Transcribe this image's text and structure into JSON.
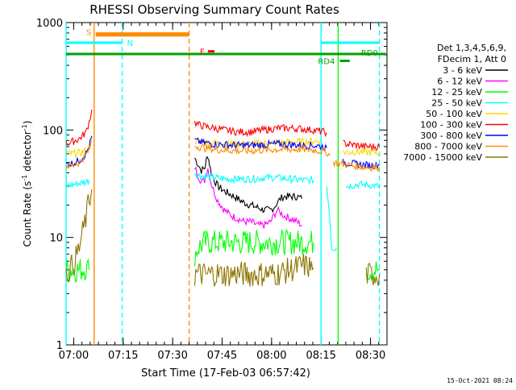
{
  "chart_data": {
    "type": "line",
    "title": "RHESSI Observing Summary Count Rates",
    "xlabel": "Start Time (17-Feb-03 06:57:42)",
    "ylabel_main": "Count Rate (s",
    "ylabel_sup1": "-1",
    "ylabel_mid": " detector",
    "ylabel_sup2": "-1",
    "ylabel_end": ")",
    "x_unit": "minutes after 06:57:42",
    "xlim": [
      0,
      97.3
    ],
    "ylim": [
      1,
      1000
    ],
    "yscale": "log",
    "xticks": [
      {
        "x": 2.3,
        "label": "07:00"
      },
      {
        "x": 17.3,
        "label": "07:15"
      },
      {
        "x": 32.3,
        "label": "07:30"
      },
      {
        "x": 47.3,
        "label": "07:45"
      },
      {
        "x": 62.3,
        "label": "08:00"
      },
      {
        "x": 77.3,
        "label": "08:15"
      },
      {
        "x": 92.3,
        "label": "08:30"
      }
    ],
    "yticks": [
      {
        "y": 1,
        "label": "1"
      },
      {
        "y": 10,
        "label": "10"
      },
      {
        "y": 100,
        "label": "100"
      },
      {
        "y": 1000,
        "label": "1000"
      }
    ],
    "legend": {
      "placement": "right",
      "header1": "Det 1,3,4,5,6,9,",
      "header2": "FDecim 1, Att 0"
    },
    "series": [
      {
        "name": "3 - 6 keV",
        "color": "#000000",
        "data": [
          [
            0,
            null
          ],
          [
            10,
            null
          ],
          [
            39,
            55
          ],
          [
            40,
            48
          ],
          [
            41,
            42
          ],
          [
            42,
            44
          ],
          [
            42.5,
            52
          ],
          [
            43,
            58
          ],
          [
            43.5,
            48
          ],
          [
            44,
            40
          ],
          [
            45,
            34
          ],
          [
            46,
            30
          ],
          [
            48,
            27
          ],
          [
            50,
            25
          ],
          [
            52,
            23
          ],
          [
            54,
            21
          ],
          [
            56,
            20
          ],
          [
            58,
            19
          ],
          [
            60,
            18
          ],
          [
            62,
            18
          ],
          [
            63,
            19
          ],
          [
            64,
            21
          ],
          [
            65,
            23
          ],
          [
            66,
            24
          ],
          [
            68,
            24
          ],
          [
            70,
            24
          ],
          [
            71.5,
            23
          ],
          [
            72,
            null
          ]
        ]
      },
      {
        "name": "6 - 12 keV",
        "color": "#ff00ff",
        "data": [
          [
            39,
            45
          ],
          [
            40,
            38
          ],
          [
            41,
            33
          ],
          [
            42,
            34
          ],
          [
            42.5,
            40
          ],
          [
            43,
            44
          ],
          [
            44,
            32
          ],
          [
            45,
            26
          ],
          [
            46,
            22
          ],
          [
            48,
            18
          ],
          [
            50,
            16
          ],
          [
            52,
            15
          ],
          [
            54,
            14
          ],
          [
            56,
            14
          ],
          [
            58,
            13
          ],
          [
            60,
            13
          ],
          [
            62,
            14
          ],
          [
            63,
            16
          ],
          [
            64,
            18
          ],
          [
            65,
            17
          ],
          [
            66,
            16
          ],
          [
            68,
            15
          ],
          [
            70,
            14
          ],
          [
            71.5,
            13
          ],
          [
            72,
            null
          ]
        ]
      },
      {
        "name": "12 - 25 keV",
        "color": "#00ff00",
        "data": [
          [
            0,
            5
          ],
          [
            2,
            5
          ],
          [
            4,
            5
          ],
          [
            6,
            5.2
          ],
          [
            7,
            5
          ],
          [
            8,
            null
          ],
          [
            39,
            7
          ],
          [
            40,
            8
          ],
          [
            42,
            9
          ],
          [
            45,
            9
          ],
          [
            48,
            9
          ],
          [
            52,
            9
          ],
          [
            56,
            9
          ],
          [
            60,
            9
          ],
          [
            64,
            9
          ],
          [
            68,
            9
          ],
          [
            72,
            9
          ],
          [
            75,
            9
          ],
          [
            75.5,
            null
          ],
          [
            91,
            5
          ],
          [
            92,
            5
          ],
          [
            94,
            5
          ],
          [
            95,
            5
          ]
        ]
      },
      {
        "name": "25 - 50 keV",
        "color": "#00ffff",
        "data": [
          [
            0,
            30
          ],
          [
            2,
            31
          ],
          [
            4,
            32
          ],
          [
            6,
            33
          ],
          [
            7,
            34
          ],
          [
            8,
            null
          ],
          [
            39,
            40
          ],
          [
            40,
            38
          ],
          [
            42,
            37
          ],
          [
            45,
            36
          ],
          [
            48,
            35
          ],
          [
            52,
            35
          ],
          [
            56,
            35
          ],
          [
            60,
            36
          ],
          [
            64,
            36
          ],
          [
            68,
            35
          ],
          [
            72,
            34
          ],
          [
            75,
            34
          ],
          [
            75.5,
            null
          ],
          [
            79,
            30
          ],
          [
            80,
            15
          ],
          [
            80.5,
            8
          ],
          [
            82,
            8
          ],
          [
            82.5,
            null
          ],
          [
            85,
            30
          ],
          [
            88,
            31
          ],
          [
            91,
            31
          ],
          [
            94,
            30
          ],
          [
            95,
            30
          ]
        ]
      },
      {
        "name": "50 - 100 keV",
        "color": "#ffd700",
        "data": [
          [
            0,
            61
          ],
          [
            2,
            60
          ],
          [
            4,
            61
          ],
          [
            6,
            64
          ],
          [
            7,
            67
          ],
          [
            8,
            null
          ],
          [
            39,
            80
          ],
          [
            40,
            78
          ],
          [
            42,
            77
          ],
          [
            45,
            76
          ],
          [
            48,
            75
          ],
          [
            52,
            74
          ],
          [
            56,
            74
          ],
          [
            60,
            75
          ],
          [
            64,
            76
          ],
          [
            68,
            77
          ],
          [
            72,
            78
          ],
          [
            75,
            79
          ],
          [
            77,
            79
          ],
          [
            78,
            null
          ],
          [
            84,
            62
          ],
          [
            88,
            63
          ],
          [
            91,
            62
          ],
          [
            94,
            62
          ],
          [
            95,
            62
          ]
        ]
      },
      {
        "name": "100 - 300 keV",
        "color": "#ff0000",
        "data": [
          [
            0,
            75
          ],
          [
            2,
            78
          ],
          [
            4,
            83
          ],
          [
            6,
            95
          ],
          [
            7,
            120
          ],
          [
            7.8,
            155
          ],
          [
            8,
            null
          ],
          [
            39,
            118
          ],
          [
            40,
            112
          ],
          [
            42,
            108
          ],
          [
            45,
            104
          ],
          [
            48,
            100
          ],
          [
            52,
            96
          ],
          [
            56,
            96
          ],
          [
            60,
            100
          ],
          [
            64,
            104
          ],
          [
            68,
            104
          ],
          [
            72,
            102
          ],
          [
            75,
            100
          ],
          [
            78,
            96
          ],
          [
            79,
            95
          ],
          [
            79.5,
            null
          ],
          [
            84,
            75
          ],
          [
            88,
            72
          ],
          [
            91,
            70
          ],
          [
            94,
            70
          ],
          [
            95,
            70
          ]
        ]
      },
      {
        "name": "300 - 800 keV",
        "color": "#0000ff",
        "data": [
          [
            0,
            48
          ],
          [
            2,
            49
          ],
          [
            4,
            52
          ],
          [
            6,
            60
          ],
          [
            7,
            70
          ],
          [
            7.8,
            88
          ],
          [
            8,
            null
          ],
          [
            39,
            80
          ],
          [
            40,
            78
          ],
          [
            42,
            76
          ],
          [
            45,
            74
          ],
          [
            48,
            73
          ],
          [
            52,
            72
          ],
          [
            56,
            72
          ],
          [
            60,
            73
          ],
          [
            64,
            74
          ],
          [
            68,
            73
          ],
          [
            72,
            72
          ],
          [
            75,
            72
          ],
          [
            78,
            70
          ],
          [
            79,
            68
          ],
          [
            79.5,
            null
          ],
          [
            84,
            50
          ],
          [
            88,
            48
          ],
          [
            91,
            47
          ],
          [
            94,
            47
          ],
          [
            95,
            47
          ]
        ]
      },
      {
        "name": "800 - 7000 keV",
        "color": "#ff8c00",
        "data": [
          [
            0,
            46
          ],
          [
            2,
            47
          ],
          [
            4,
            50
          ],
          [
            6,
            58
          ],
          [
            7,
            66
          ],
          [
            7.8,
            80
          ],
          [
            8,
            null
          ],
          [
            39,
            72
          ],
          [
            40,
            70
          ],
          [
            42,
            68
          ],
          [
            45,
            66
          ],
          [
            48,
            65
          ],
          [
            52,
            64
          ],
          [
            56,
            64
          ],
          [
            60,
            65
          ],
          [
            64,
            66
          ],
          [
            68,
            66
          ],
          [
            72,
            66
          ],
          [
            75,
            65
          ],
          [
            78,
            63
          ],
          [
            79,
            62
          ],
          [
            80,
            58
          ],
          [
            80.5,
            null
          ],
          [
            81,
            50
          ],
          [
            84,
            48
          ],
          [
            88,
            46
          ],
          [
            91,
            45
          ],
          [
            94,
            45
          ],
          [
            95,
            45
          ]
        ]
      },
      {
        "name": "7000 - 15000 keV",
        "color": "#8b7500",
        "data": [
          [
            0,
            4.5
          ],
          [
            1,
            5
          ],
          [
            2,
            5.5
          ],
          [
            3,
            6.5
          ],
          [
            4,
            8
          ],
          [
            5,
            11
          ],
          [
            6,
            15
          ],
          [
            7,
            22
          ],
          [
            7.8,
            28
          ],
          [
            8,
            null
          ],
          [
            39,
            4.5
          ],
          [
            40,
            4.6
          ],
          [
            42,
            4.5
          ],
          [
            45,
            4.6
          ],
          [
            48,
            4.5
          ],
          [
            52,
            4.6
          ],
          [
            56,
            4.5
          ],
          [
            60,
            4.6
          ],
          [
            64,
            4.6
          ],
          [
            68,
            5
          ],
          [
            72,
            5.5
          ],
          [
            75,
            5.2
          ],
          [
            75.5,
            null
          ],
          [
            91,
            4.5
          ],
          [
            92,
            4.5
          ],
          [
            94,
            4.5
          ],
          [
            95,
            4.5
          ]
        ]
      }
    ],
    "annotations": [
      {
        "label": "S",
        "color": "#ff8c00",
        "y": 760,
        "x1": 9,
        "x2": 37.3
      },
      {
        "label": "N",
        "color": "#00ffff",
        "y": 650,
        "x1": 0,
        "x2": 17
      },
      {
        "label": "F",
        "color": "#ff0000",
        "y": 540,
        "x1": 43,
        "x2": 45
      },
      {
        "label": "RD0",
        "color": "#00a000",
        "y": 510,
        "x1": 0,
        "x2": 97
      },
      {
        "label": "RD4",
        "color": "#00a000",
        "y": 440,
        "x1": 83,
        "x2": 86
      }
    ],
    "annotation_lines": {
      "y_top": 790,
      "cyan_right_x1": 77.3,
      "cyan_right_x2": 95
    },
    "vlines": [
      {
        "x": 0,
        "color": "#00ffff",
        "style": "solid"
      },
      {
        "x": 8.5,
        "color": "#ff8c00",
        "style": "solid"
      },
      {
        "x": 17,
        "color": "#00ffff",
        "style": "dashed"
      },
      {
        "x": 37.3,
        "color": "#ff8c00",
        "style": "dashed"
      },
      {
        "x": 77.3,
        "color": "#00ffff",
        "style": "solid"
      },
      {
        "x": 82.5,
        "color": "#00ff00",
        "style": "solid"
      },
      {
        "x": 95,
        "color": "#00ffff",
        "style": "dashed"
      }
    ],
    "grid": false
  },
  "timestamp": "15-Oct-2021 08:24"
}
